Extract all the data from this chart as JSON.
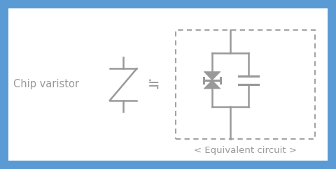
{
  "bg_outer": "#5b9bd5",
  "bg_inner": "#ffffff",
  "symbol_color": "#999999",
  "text_color": "#999999",
  "chip_varistor_label": "Chip varistor",
  "equiv_label": "< Equivalent circuit >",
  "approx_equal": "≒",
  "label_fontsize": 10.5,
  "equiv_fontsize": 9.5,
  "figsize": [
    4.8,
    2.42
  ],
  "dpi": 100
}
